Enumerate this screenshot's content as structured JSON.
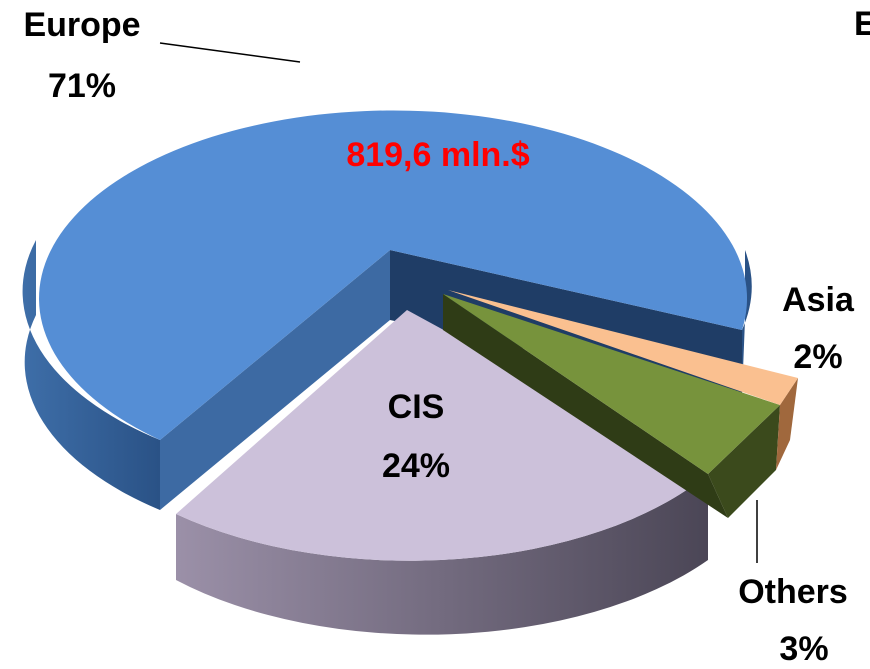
{
  "chart_data": {
    "type": "pie",
    "title": "E",
    "slices": [
      {
        "name": "Europe",
        "percent": 71,
        "percent_label": "71%",
        "color": "#558ED5"
      },
      {
        "name": "CIS",
        "percent": 24,
        "percent_label": "24%",
        "color": "#CCC1DA"
      },
      {
        "name": "Others",
        "percent": 3,
        "percent_label": "3%",
        "color": "#77933C"
      },
      {
        "name": "Asia",
        "percent": 2,
        "percent_label": "2%",
        "color": "#FAC090"
      }
    ],
    "annotation": {
      "text": "819,6 mln.$",
      "color": "#FF0000"
    }
  }
}
